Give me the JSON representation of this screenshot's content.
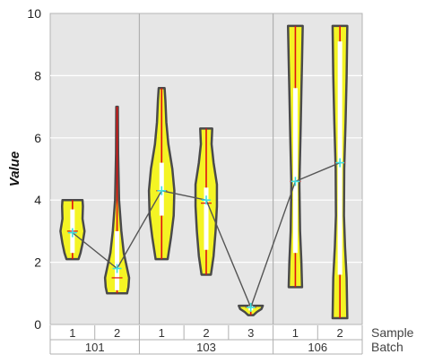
{
  "chart_data": {
    "type": "violin",
    "ylabel": "Value",
    "ylim": [
      0,
      10
    ],
    "yticks": [
      "0",
      "2",
      "4",
      "6",
      "8",
      "10"
    ],
    "grid": true,
    "row_labels": {
      "sample": "Sample",
      "batch": "Batch"
    },
    "colors": {
      "violin_fill": "#f4f424",
      "violin_outline": "#4a4a4a",
      "range_line": "#e01010",
      "iqr_bar": "#ffffff",
      "mean_marker": "#40e0e0",
      "connector": "#555555",
      "panel_bg": "#e6e6e6",
      "grid": "#ffffff"
    },
    "groups": [
      {
        "batch": "101",
        "samples": [
          {
            "sample": "1",
            "min": 2.1,
            "q1": 2.3,
            "median": 3.0,
            "q3": 3.7,
            "max": 4.0,
            "mean": 2.95,
            "profile": [
              [
                2.1,
                0.45
              ],
              [
                2.3,
                0.6
              ],
              [
                2.6,
                0.75
              ],
              [
                3.0,
                0.9
              ],
              [
                3.4,
                0.75
              ],
              [
                3.8,
                0.78
              ],
              [
                4.0,
                0.75
              ]
            ]
          },
          {
            "sample": "2",
            "min": 1.0,
            "q1": 1.1,
            "median": 1.5,
            "q3": 3.0,
            "max": 7.0,
            "mean": 1.8,
            "profile": [
              [
                1.0,
                0.75
              ],
              [
                1.2,
                0.85
              ],
              [
                1.5,
                0.9
              ],
              [
                1.8,
                0.75
              ],
              [
                2.3,
                0.5
              ],
              [
                3.0,
                0.32
              ],
              [
                4.0,
                0.15
              ],
              [
                5.5,
                0.08
              ],
              [
                7.0,
                0.06
              ]
            ]
          }
        ]
      },
      {
        "batch": "103",
        "samples": [
          {
            "sample": "1",
            "min": 2.1,
            "q1": 3.5,
            "median": 4.3,
            "q3": 5.2,
            "max": 7.6,
            "mean": 4.3,
            "profile": [
              [
                2.1,
                0.45
              ],
              [
                2.8,
                0.7
              ],
              [
                3.5,
                0.9
              ],
              [
                4.3,
                0.95
              ],
              [
                5.0,
                0.8
              ],
              [
                5.8,
                0.5
              ],
              [
                6.5,
                0.35
              ],
              [
                7.2,
                0.28
              ],
              [
                7.6,
                0.22
              ]
            ]
          },
          {
            "sample": "2",
            "min": 1.6,
            "q1": 2.4,
            "median": 3.9,
            "q3": 4.4,
            "max": 6.3,
            "mean": 4.0,
            "profile": [
              [
                1.6,
                0.35
              ],
              [
                2.2,
                0.55
              ],
              [
                3.0,
                0.7
              ],
              [
                3.8,
                0.8
              ],
              [
                4.5,
                0.8
              ],
              [
                5.2,
                0.55
              ],
              [
                5.8,
                0.4
              ],
              [
                6.3,
                0.45
              ]
            ]
          },
          {
            "sample": "3",
            "min": 0.3,
            "q1": 0.45,
            "median": 0.55,
            "q3": 0.6,
            "max": 0.6,
            "mean": 0.55,
            "profile": [
              [
                0.3,
                0.2
              ],
              [
                0.4,
                0.45
              ],
              [
                0.5,
                0.8
              ],
              [
                0.6,
                0.9
              ]
            ]
          }
        ]
      },
      {
        "batch": "106",
        "samples": [
          {
            "sample": "1",
            "min": 1.2,
            "q1": 2.3,
            "median": 4.6,
            "q3": 7.6,
            "max": 9.6,
            "mean": 4.6,
            "profile": [
              [
                1.2,
                0.5
              ],
              [
                2.0,
                0.45
              ],
              [
                3.0,
                0.35
              ],
              [
                4.5,
                0.3
              ],
              [
                6.0,
                0.38
              ],
              [
                7.5,
                0.45
              ],
              [
                8.5,
                0.5
              ],
              [
                9.6,
                0.55
              ]
            ]
          },
          {
            "sample": "2",
            "min": 0.2,
            "q1": 1.6,
            "median": 5.2,
            "q3": 9.1,
            "max": 9.6,
            "mean": 5.2,
            "profile": [
              [
                0.2,
                0.55
              ],
              [
                1.5,
                0.5
              ],
              [
                2.5,
                0.38
              ],
              [
                3.5,
                0.3
              ],
              [
                5.0,
                0.32
              ],
              [
                6.5,
                0.42
              ],
              [
                8.0,
                0.5
              ],
              [
                9.6,
                0.55
              ]
            ]
          }
        ]
      }
    ]
  }
}
